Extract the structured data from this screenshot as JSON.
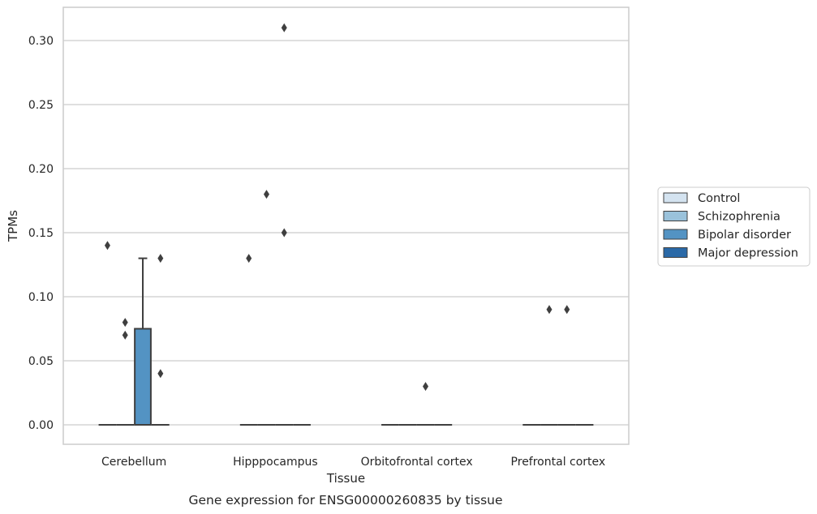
{
  "chart_data": {
    "type": "box",
    "title": "",
    "caption": "Gene expression for ENSG00000260835 by tissue",
    "xlabel": "Tissue",
    "ylabel": "TPMs",
    "ylim": [
      -0.015,
      0.325
    ],
    "yticks": [
      0.0,
      0.05,
      0.1,
      0.15,
      0.2,
      0.25,
      0.3
    ],
    "ytick_labels": [
      "0.00",
      "0.05",
      "0.10",
      "0.15",
      "0.20",
      "0.25",
      "0.30"
    ],
    "grid": "horizontal",
    "legend_position": "right",
    "categories": [
      "Cerebellum",
      "Hipppocampus",
      "Orbitofrontal cortex",
      "Prefrontal cortex"
    ],
    "series": [
      {
        "name": "Control",
        "color": "#d4e3f0",
        "boxes": [
          {
            "q1": 0,
            "median": 0,
            "q3": 0,
            "whisker_low": 0,
            "whisker_high": 0,
            "outliers": [
              0.14
            ]
          },
          {
            "q1": 0,
            "median": 0,
            "q3": 0,
            "whisker_low": 0,
            "whisker_high": 0,
            "outliers": [
              0.13
            ]
          },
          {
            "q1": 0,
            "median": 0,
            "q3": 0,
            "whisker_low": 0,
            "whisker_high": 0,
            "outliers": []
          },
          {
            "q1": 0,
            "median": 0,
            "q3": 0,
            "whisker_low": 0,
            "whisker_high": 0,
            "outliers": []
          }
        ]
      },
      {
        "name": "Schizophrenia",
        "color": "#9ac2db",
        "boxes": [
          {
            "q1": 0,
            "median": 0,
            "q3": 0,
            "whisker_low": 0,
            "whisker_high": 0,
            "outliers": [
              0.08,
              0.07
            ]
          },
          {
            "q1": 0,
            "median": 0,
            "q3": 0,
            "whisker_low": 0,
            "whisker_high": 0,
            "outliers": [
              0.18
            ]
          },
          {
            "q1": 0,
            "median": 0,
            "q3": 0,
            "whisker_low": 0,
            "whisker_high": 0,
            "outliers": []
          },
          {
            "q1": 0,
            "median": 0,
            "q3": 0,
            "whisker_low": 0,
            "whisker_high": 0,
            "outliers": [
              0.09
            ]
          }
        ]
      },
      {
        "name": "Bipolar disorder",
        "color": "#5393c3",
        "boxes": [
          {
            "q1": 0,
            "median": 0,
            "q3": 0.075,
            "whisker_low": 0,
            "whisker_high": 0.13,
            "outliers": []
          },
          {
            "q1": 0,
            "median": 0,
            "q3": 0,
            "whisker_low": 0,
            "whisker_high": 0,
            "outliers": [
              0.31,
              0.15
            ]
          },
          {
            "q1": 0,
            "median": 0,
            "q3": 0,
            "whisker_low": 0,
            "whisker_high": 0,
            "outliers": [
              0.03
            ]
          },
          {
            "q1": 0,
            "median": 0,
            "q3": 0,
            "whisker_low": 0,
            "whisker_high": 0,
            "outliers": [
              0.09
            ]
          }
        ]
      },
      {
        "name": "Major depression",
        "color": "#2a69a7",
        "boxes": [
          {
            "q1": 0,
            "median": 0,
            "q3": 0,
            "whisker_low": 0,
            "whisker_high": 0,
            "outliers": [
              0.13,
              0.04
            ]
          },
          {
            "q1": 0,
            "median": 0,
            "q3": 0,
            "whisker_low": 0,
            "whisker_high": 0,
            "outliers": []
          },
          {
            "q1": 0,
            "median": 0,
            "q3": 0,
            "whisker_low": 0,
            "whisker_high": 0,
            "outliers": []
          },
          {
            "q1": 0,
            "median": 0,
            "q3": 0,
            "whisker_low": 0,
            "whisker_high": 0,
            "outliers": []
          }
        ]
      }
    ]
  }
}
